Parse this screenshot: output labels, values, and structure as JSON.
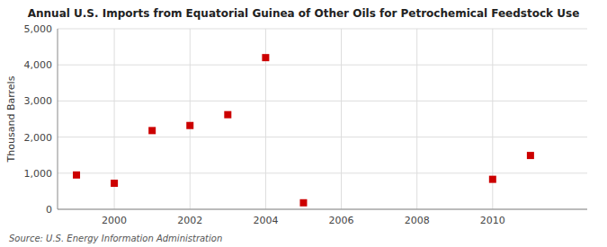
{
  "chart_data": {
    "type": "scatter",
    "title": "Annual U.S. Imports from Equatorial Guinea of Other Oils for Petrochemical Feedstock Use",
    "ylabel": "Thousand Barrels",
    "source": "Source: U.S. Energy Information Administration",
    "x": [
      1999,
      2000,
      2001,
      2002,
      2003,
      2004,
      2005,
      2010,
      2011
    ],
    "values": [
      950,
      720,
      2180,
      2320,
      2620,
      4200,
      180,
      830,
      1490
    ],
    "color": "#cc0000",
    "marker": "square",
    "xlim": [
      1998.5,
      2012.5
    ],
    "ylim": [
      0,
      5000
    ],
    "xticks": [
      2000,
      2002,
      2004,
      2006,
      2008,
      2010
    ],
    "yticks": [
      0,
      {
        "value": 1000,
        "label": "1,000"
      },
      {
        "value": 2000,
        "label": "2,000"
      },
      {
        "value": 3000,
        "label": "3,000"
      },
      {
        "value": 4000,
        "label": "4,000"
      },
      {
        "value": 5000,
        "label": "5,000"
      }
    ],
    "grid": true
  }
}
